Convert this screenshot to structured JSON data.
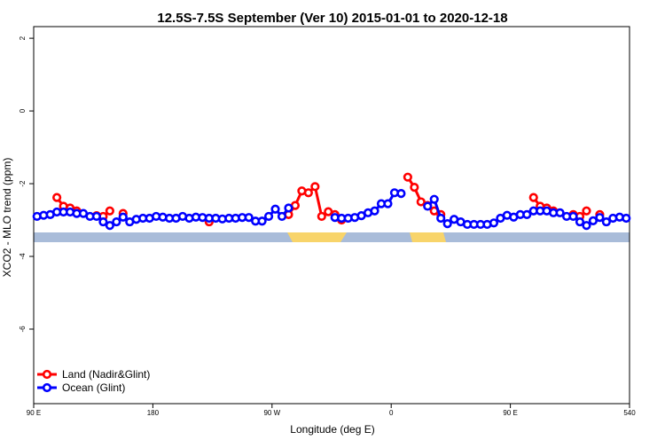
{
  "chart_data": {
    "type": "line",
    "title": "12.5S-7.5S September (Ver 10)   2015-01-01 to 2020-12-18",
    "x_label": "Longitude (deg E)",
    "y_label": "XCO2 - MLO trend (ppm)",
    "x": [
      92.5,
      97.5,
      102.5,
      107.5,
      112.5,
      117.5,
      122.5,
      127.5,
      132.5,
      137.5,
      142.5,
      147.5,
      152.5,
      157.5,
      162.5,
      167.5,
      172.5,
      177.5,
      182.5,
      187.5,
      192.5,
      197.5,
      202.5,
      207.5,
      212.5,
      217.5,
      222.5,
      227.5,
      232.5,
      237.5,
      242.5,
      247.5,
      252.5,
      257.5,
      262.5,
      267.5,
      272.5,
      277.5,
      282.5,
      287.5,
      292.5,
      297.5,
      302.5,
      307.5,
      312.5,
      317.5,
      322.5,
      327.5,
      332.5,
      337.5,
      342.5,
      347.5,
      352.5,
      357.5,
      362.5,
      367.5,
      372.5,
      377.5,
      382.5,
      387.5,
      392.5,
      397.5,
      402.5,
      407.5,
      412.5,
      417.5,
      422.5,
      427.5,
      432.5,
      437.5,
      442.5,
      447.5,
      452.5,
      457.5,
      462.5,
      467.5,
      472.5,
      477.5,
      482.5,
      487.5,
      492.5,
      497.5,
      502.5,
      507.5,
      512.5,
      517.5,
      522.5,
      527.5,
      532.5,
      537.5
    ],
    "series": [
      {
        "name": "Land (Nadir&Glint)",
        "color": "#ff0000",
        "values": [
          null,
          null,
          null,
          -2.38,
          -2.62,
          -2.67,
          -2.75,
          null,
          null,
          -2.88,
          -2.9,
          -2.75,
          null,
          -2.82,
          null,
          null,
          null,
          null,
          null,
          null,
          null,
          null,
          null,
          null,
          null,
          null,
          -3.05,
          null,
          null,
          null,
          null,
          null,
          null,
          null,
          null,
          null,
          null,
          null,
          -2.85,
          -2.6,
          -2.2,
          -2.25,
          -2.08,
          -2.9,
          -2.77,
          -2.85,
          -3.0,
          null,
          null,
          null,
          null,
          null,
          null,
          null,
          null,
          null,
          -1.82,
          -2.1,
          -2.5,
          -2.6,
          -2.75,
          -2.85,
          null,
          null,
          null,
          null,
          null,
          null,
          null,
          null,
          null,
          null,
          null,
          null,
          null,
          -2.38,
          -2.62,
          -2.67,
          -2.75,
          null,
          null,
          -2.85,
          -2.9,
          -2.75,
          null,
          -2.85,
          null,
          null,
          null,
          null
        ]
      },
      {
        "name": "Ocean (Glint)",
        "color": "#0000ff",
        "values": [
          -2.9,
          -2.87,
          -2.85,
          -2.78,
          -2.78,
          -2.78,
          -2.82,
          -2.82,
          -2.9,
          -2.9,
          -3.05,
          -3.15,
          -3.05,
          -2.92,
          -3.05,
          -2.98,
          -2.95,
          -2.95,
          -2.9,
          -2.92,
          -2.95,
          -2.95,
          -2.9,
          -2.95,
          -2.92,
          -2.93,
          -2.95,
          -2.95,
          -2.97,
          -2.95,
          -2.95,
          -2.93,
          -2.93,
          -3.03,
          -3.03,
          -2.9,
          -2.7,
          -2.9,
          -2.67,
          null,
          null,
          null,
          null,
          null,
          null,
          -2.93,
          -2.95,
          -2.95,
          -2.93,
          -2.88,
          -2.8,
          -2.75,
          -2.55,
          -2.55,
          -2.25,
          -2.27,
          null,
          null,
          null,
          -2.62,
          -2.43,
          -2.95,
          -3.1,
          -2.98,
          -3.05,
          -3.12,
          -3.12,
          -3.12,
          -3.12,
          -3.08,
          -2.95,
          -2.87,
          -2.92,
          -2.85,
          -2.85,
          -2.75,
          -2.75,
          -2.75,
          -2.8,
          -2.8,
          -2.9,
          -2.9,
          -3.05,
          -3.15,
          -3.02,
          -2.93,
          -3.05,
          -2.95,
          -2.92,
          -2.95
        ]
      }
    ],
    "xlim": [
      90,
      540
    ],
    "xticks": [
      {
        "value": 90,
        "label": "90 E"
      },
      180,
      {
        "value": 270,
        "label": "90 W"
      },
      {
        "value": 360,
        "label": "0"
      },
      {
        "value": 450,
        "label": "90 E"
      },
      540
    ],
    "ylim": [
      -8.05,
      2.32
    ],
    "yticks": [
      2,
      0,
      -2,
      -4,
      -6
    ],
    "legend": "bottom-left"
  }
}
